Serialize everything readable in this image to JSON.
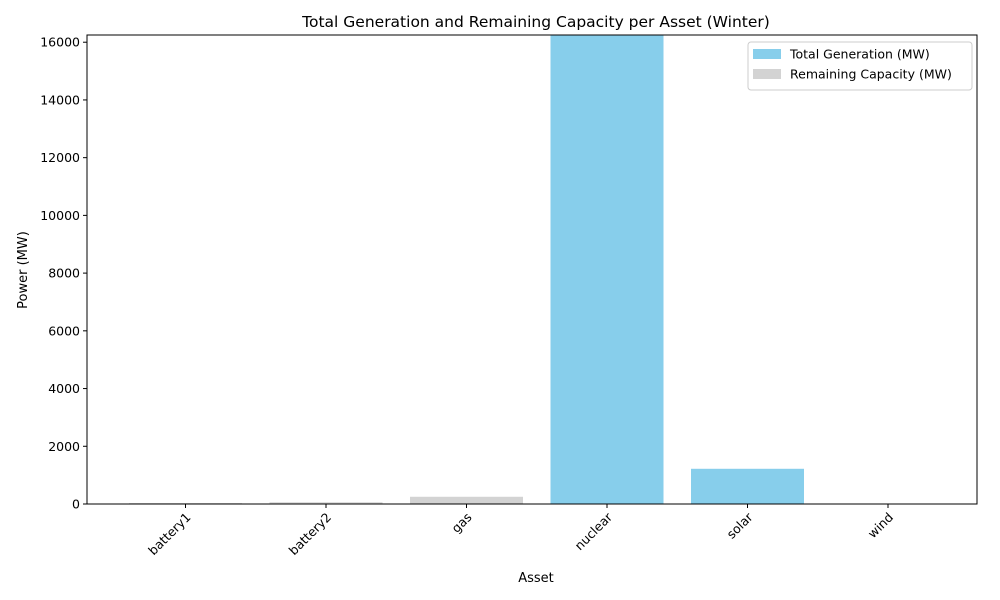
{
  "chart_data": {
    "type": "bar",
    "stacked": true,
    "title": "Total Generation and Remaining Capacity per Asset (Winter)",
    "xlabel": "Asset",
    "ylabel": "Power (MW)",
    "categories": [
      "battery1",
      "battery2",
      "gas",
      "nuclear",
      "solar",
      "wind"
    ],
    "series": [
      {
        "name": "Total Generation (MW)",
        "color": "#87ceeb",
        "values": [
          0,
          0,
          0,
          16250,
          1220,
          0
        ]
      },
      {
        "name": "Remaining Capacity (MW)",
        "color": "#d3d3d3",
        "values": [
          30,
          60,
          250,
          0,
          0,
          0
        ]
      }
    ],
    "ylim": [
      0,
      16250
    ],
    "yticks": [
      0,
      2000,
      4000,
      6000,
      8000,
      10000,
      12000,
      14000,
      16000
    ],
    "legend_position": "top-right",
    "grid": false
  }
}
